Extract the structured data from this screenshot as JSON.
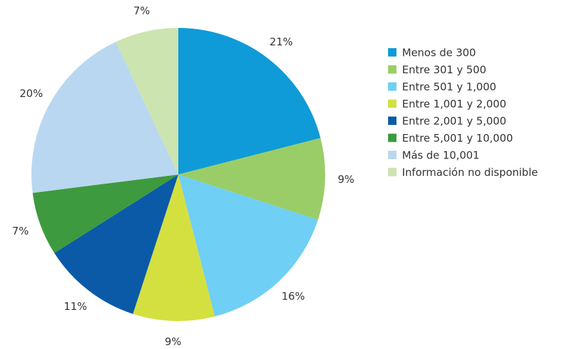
{
  "chart_data": {
    "type": "pie",
    "categories": [
      "Menos de 300",
      "Entre 301 y 500",
      "Entre 501 y 1,000",
      "Entre 1,001 y 2,000",
      "Entre 2,001 y 5,000",
      "Entre 5,001 y 10,000",
      "Más de 10,001",
      "Información no disponible"
    ],
    "values": [
      21,
      9,
      16,
      9,
      11,
      7,
      20,
      7
    ],
    "value_labels": [
      "21%",
      "9%",
      "16%",
      "9%",
      "11%",
      "7%",
      "20%",
      "7%"
    ],
    "colors": [
      "#0f9bd7",
      "#9acd67",
      "#6fcff4",
      "#d4e040",
      "#0a5aa8",
      "#3e9a3e",
      "#b9d7f0",
      "#cce4b0"
    ],
    "legend": "right"
  }
}
